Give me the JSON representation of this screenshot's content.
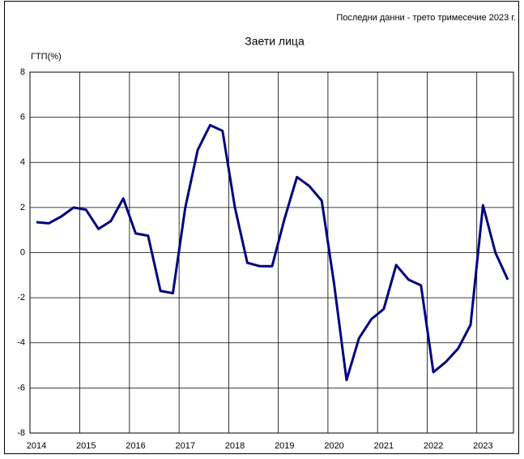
{
  "chart_data": {
    "type": "line",
    "title": "Заети лица",
    "subtitle": "Последни данни - трето тримесечие 2023 г.",
    "y_label": "ГТП(%)",
    "categories": [
      "2014",
      null,
      null,
      null,
      "2015",
      null,
      null,
      null,
      "2016",
      null,
      null,
      null,
      "2017",
      null,
      null,
      null,
      "2018",
      null,
      null,
      null,
      "2019",
      null,
      null,
      null,
      "2020",
      null,
      null,
      null,
      "2021",
      null,
      null,
      null,
      "2022",
      null,
      null,
      null,
      "2023",
      null,
      null
    ],
    "series": [
      {
        "name": "Заети лица",
        "color": "#000080",
        "values": [
          1.35,
          1.3,
          1.6,
          2.0,
          1.9,
          1.05,
          1.4,
          2.4,
          0.85,
          0.75,
          -1.7,
          -1.8,
          2.0,
          4.55,
          5.65,
          5.4,
          2.0,
          -0.45,
          -0.6,
          -0.6,
          1.5,
          3.35,
          2.95,
          2.3,
          -1.4,
          -5.65,
          -3.8,
          -2.95,
          -2.5,
          -0.55,
          -1.2,
          -1.45,
          -5.3,
          -4.85,
          -4.25,
          -3.2,
          2.1,
          0.0,
          -1.2
        ]
      }
    ],
    "ylim": [
      -8,
      8
    ],
    "yticks": [
      -8,
      -6,
      -4,
      -2,
      0,
      2,
      4,
      6,
      8
    ],
    "grid": true
  }
}
